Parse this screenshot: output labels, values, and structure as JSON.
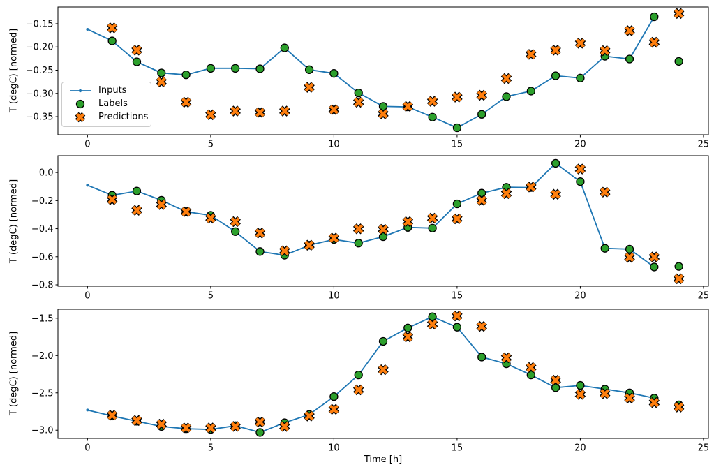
{
  "chart_data": [
    {
      "type": "line",
      "subplot": 1,
      "ylabel": "T (degC) [normed]",
      "xlim": [
        -1.2,
        25.2
      ],
      "ylim": [
        -0.389,
        -0.114
      ],
      "grid": false,
      "xticks": {
        "values": [
          0,
          5,
          10,
          15,
          20,
          25
        ],
        "labels": [
          "0",
          "5",
          "10",
          "15",
          "20",
          "25"
        ]
      },
      "yticks": {
        "values": [
          -0.15,
          -0.2,
          -0.25,
          -0.3,
          -0.35
        ],
        "labels": [
          "−0.15",
          "−0.20",
          "−0.25",
          "−0.30",
          "−0.35"
        ]
      },
      "legend": {
        "visible": true,
        "position": "center left"
      },
      "series": [
        {
          "name": "Inputs",
          "kind": "line",
          "marker": "dot",
          "color": "#1f77b4",
          "x": [
            0,
            1,
            2,
            3,
            4,
            5,
            6,
            7,
            8,
            9,
            10,
            11,
            12,
            13,
            14,
            15,
            16,
            17,
            18,
            19,
            20,
            21,
            22,
            23
          ],
          "y": [
            -0.162,
            -0.187,
            -0.232,
            -0.256,
            -0.26,
            -0.246,
            -0.246,
            -0.247,
            -0.202,
            -0.249,
            -0.257,
            -0.299,
            -0.328,
            -0.329,
            -0.351,
            -0.374,
            -0.345,
            -0.307,
            -0.295,
            -0.262,
            -0.267,
            -0.22,
            -0.226,
            -0.135
          ]
        },
        {
          "name": "Labels",
          "kind": "scatter",
          "marker": "circle",
          "fill": "#2ca02c",
          "edge": "#000000",
          "x": [
            1,
            2,
            3,
            4,
            5,
            6,
            7,
            8,
            9,
            10,
            11,
            12,
            13,
            14,
            15,
            16,
            17,
            18,
            19,
            20,
            21,
            22,
            23,
            24
          ],
          "y": [
            -0.187,
            -0.232,
            -0.256,
            -0.26,
            -0.246,
            -0.246,
            -0.247,
            -0.202,
            -0.249,
            -0.257,
            -0.299,
            -0.328,
            -0.329,
            -0.351,
            -0.374,
            -0.345,
            -0.307,
            -0.295,
            -0.262,
            -0.267,
            -0.22,
            -0.226,
            -0.135,
            -0.231
          ]
        },
        {
          "name": "Predictions",
          "kind": "scatter",
          "marker": "X",
          "fill": "#ff7f0e",
          "edge": "#000000",
          "x": [
            1,
            2,
            3,
            4,
            5,
            6,
            7,
            8,
            9,
            10,
            11,
            12,
            13,
            14,
            15,
            16,
            17,
            18,
            19,
            20,
            21,
            22,
            23,
            24
          ],
          "y": [
            -0.159,
            -0.207,
            -0.275,
            -0.319,
            -0.346,
            -0.338,
            -0.341,
            -0.338,
            -0.287,
            -0.335,
            -0.319,
            -0.344,
            -0.328,
            -0.317,
            -0.308,
            -0.304,
            -0.268,
            -0.216,
            -0.207,
            -0.192,
            -0.208,
            -0.165,
            -0.19,
            -0.128
          ]
        }
      ]
    },
    {
      "type": "line",
      "subplot": 2,
      "ylabel": "T (degC) [normed]",
      "xlim": [
        -1.2,
        25.2
      ],
      "ylim": [
        -0.81,
        0.12
      ],
      "grid": false,
      "xticks": {
        "values": [
          0,
          5,
          10,
          15,
          20,
          25
        ],
        "labels": [
          "0",
          "5",
          "10",
          "15",
          "20",
          "25"
        ]
      },
      "yticks": {
        "values": [
          0.0,
          -0.2,
          -0.4,
          -0.6,
          -0.8
        ],
        "labels": [
          "0.0",
          "−0.2",
          "−0.4",
          "−0.6",
          "−0.8"
        ]
      },
      "legend": {
        "visible": false
      },
      "series": [
        {
          "name": "Inputs",
          "kind": "line",
          "marker": "dot",
          "color": "#1f77b4",
          "x": [
            0,
            1,
            2,
            3,
            4,
            5,
            6,
            7,
            8,
            9,
            10,
            11,
            12,
            13,
            14,
            15,
            16,
            17,
            18,
            19,
            20,
            21,
            22,
            23
          ],
          "y": [
            -0.091,
            -0.162,
            -0.132,
            -0.198,
            -0.279,
            -0.305,
            -0.421,
            -0.563,
            -0.589,
            -0.518,
            -0.477,
            -0.503,
            -0.457,
            -0.391,
            -0.396,
            -0.223,
            -0.147,
            -0.105,
            -0.107,
            0.066,
            -0.065,
            -0.54,
            -0.546,
            -0.673
          ]
        },
        {
          "name": "Labels",
          "kind": "scatter",
          "marker": "circle",
          "fill": "#2ca02c",
          "edge": "#000000",
          "x": [
            1,
            2,
            3,
            4,
            5,
            6,
            7,
            8,
            9,
            10,
            11,
            12,
            13,
            14,
            15,
            16,
            17,
            18,
            19,
            20,
            21,
            22,
            23,
            24
          ],
          "y": [
            -0.162,
            -0.132,
            -0.198,
            -0.279,
            -0.305,
            -0.421,
            -0.563,
            -0.589,
            -0.518,
            -0.477,
            -0.503,
            -0.457,
            -0.391,
            -0.396,
            -0.223,
            -0.147,
            -0.105,
            -0.107,
            0.066,
            -0.065,
            -0.54,
            -0.546,
            -0.673,
            -0.669
          ]
        },
        {
          "name": "Predictions",
          "kind": "scatter",
          "marker": "X",
          "fill": "#ff7f0e",
          "edge": "#000000",
          "x": [
            1,
            2,
            3,
            4,
            5,
            6,
            7,
            8,
            9,
            10,
            11,
            12,
            13,
            14,
            15,
            16,
            17,
            18,
            19,
            20,
            21,
            22,
            23,
            24
          ],
          "y": [
            -0.193,
            -0.269,
            -0.228,
            -0.279,
            -0.325,
            -0.35,
            -0.431,
            -0.558,
            -0.518,
            -0.467,
            -0.401,
            -0.405,
            -0.35,
            -0.325,
            -0.33,
            -0.198,
            -0.15,
            -0.103,
            -0.155,
            0.025,
            -0.14,
            -0.604,
            -0.602,
            -0.757
          ]
        }
      ]
    },
    {
      "type": "line",
      "subplot": 3,
      "ylabel": "T (degC) [normed]",
      "xlabel": "Time [h]",
      "xlim": [
        -1.2,
        25.2
      ],
      "ylim": [
        -3.11,
        -1.38
      ],
      "grid": false,
      "xticks": {
        "values": [
          0,
          5,
          10,
          15,
          20,
          25
        ],
        "labels": [
          "0",
          "5",
          "10",
          "15",
          "20",
          "25"
        ]
      },
      "yticks": {
        "values": [
          -1.5,
          -2.0,
          -2.5,
          -3.0
        ],
        "labels": [
          "−1.5",
          "−2.0",
          "−2.5",
          "−3.0"
        ]
      },
      "legend": {
        "visible": false
      },
      "series": [
        {
          "name": "Inputs",
          "kind": "line",
          "marker": "dot",
          "color": "#1f77b4",
          "x": [
            0,
            1,
            2,
            3,
            4,
            5,
            6,
            7,
            8,
            9,
            10,
            11,
            12,
            13,
            14,
            15,
            16,
            17,
            18,
            19,
            20,
            21,
            22,
            23
          ],
          "y": [
            -2.73,
            -2.81,
            -2.88,
            -2.95,
            -2.98,
            -2.99,
            -2.94,
            -3.03,
            -2.9,
            -2.79,
            -2.55,
            -2.26,
            -1.81,
            -1.63,
            -1.48,
            -1.62,
            -2.02,
            -2.11,
            -2.26,
            -2.43,
            -2.4,
            -2.45,
            -2.5,
            -2.57
          ]
        },
        {
          "name": "Labels",
          "kind": "scatter",
          "marker": "circle",
          "fill": "#2ca02c",
          "edge": "#000000",
          "x": [
            1,
            2,
            3,
            4,
            5,
            6,
            7,
            8,
            9,
            10,
            11,
            12,
            13,
            14,
            15,
            16,
            17,
            18,
            19,
            20,
            21,
            22,
            23,
            24
          ],
          "y": [
            -2.81,
            -2.88,
            -2.95,
            -2.98,
            -2.99,
            -2.94,
            -3.03,
            -2.9,
            -2.79,
            -2.55,
            -2.26,
            -1.81,
            -1.63,
            -1.48,
            -1.62,
            -2.02,
            -2.11,
            -2.26,
            -2.43,
            -2.4,
            -2.45,
            -2.5,
            -2.57,
            -2.66
          ]
        },
        {
          "name": "Predictions",
          "kind": "scatter",
          "marker": "X",
          "fill": "#ff7f0e",
          "edge": "#000000",
          "x": [
            1,
            2,
            3,
            4,
            5,
            6,
            7,
            8,
            9,
            10,
            11,
            12,
            13,
            14,
            15,
            16,
            17,
            18,
            19,
            20,
            21,
            22,
            23,
            24
          ],
          "y": [
            -2.8,
            -2.87,
            -2.92,
            -2.97,
            -2.97,
            -2.95,
            -2.89,
            -2.95,
            -2.81,
            -2.72,
            -2.46,
            -2.19,
            -1.75,
            -1.58,
            -1.47,
            -1.61,
            -2.03,
            -2.16,
            -2.33,
            -2.52,
            -2.51,
            -2.57,
            -2.63,
            -2.69
          ]
        }
      ]
    }
  ],
  "colors": {
    "inputs_line": "#1f77b4",
    "labels_marker": "#2ca02c",
    "predictions_marker": "#ff7f0e",
    "marker_edge": "#000000",
    "background": "#ffffff"
  }
}
